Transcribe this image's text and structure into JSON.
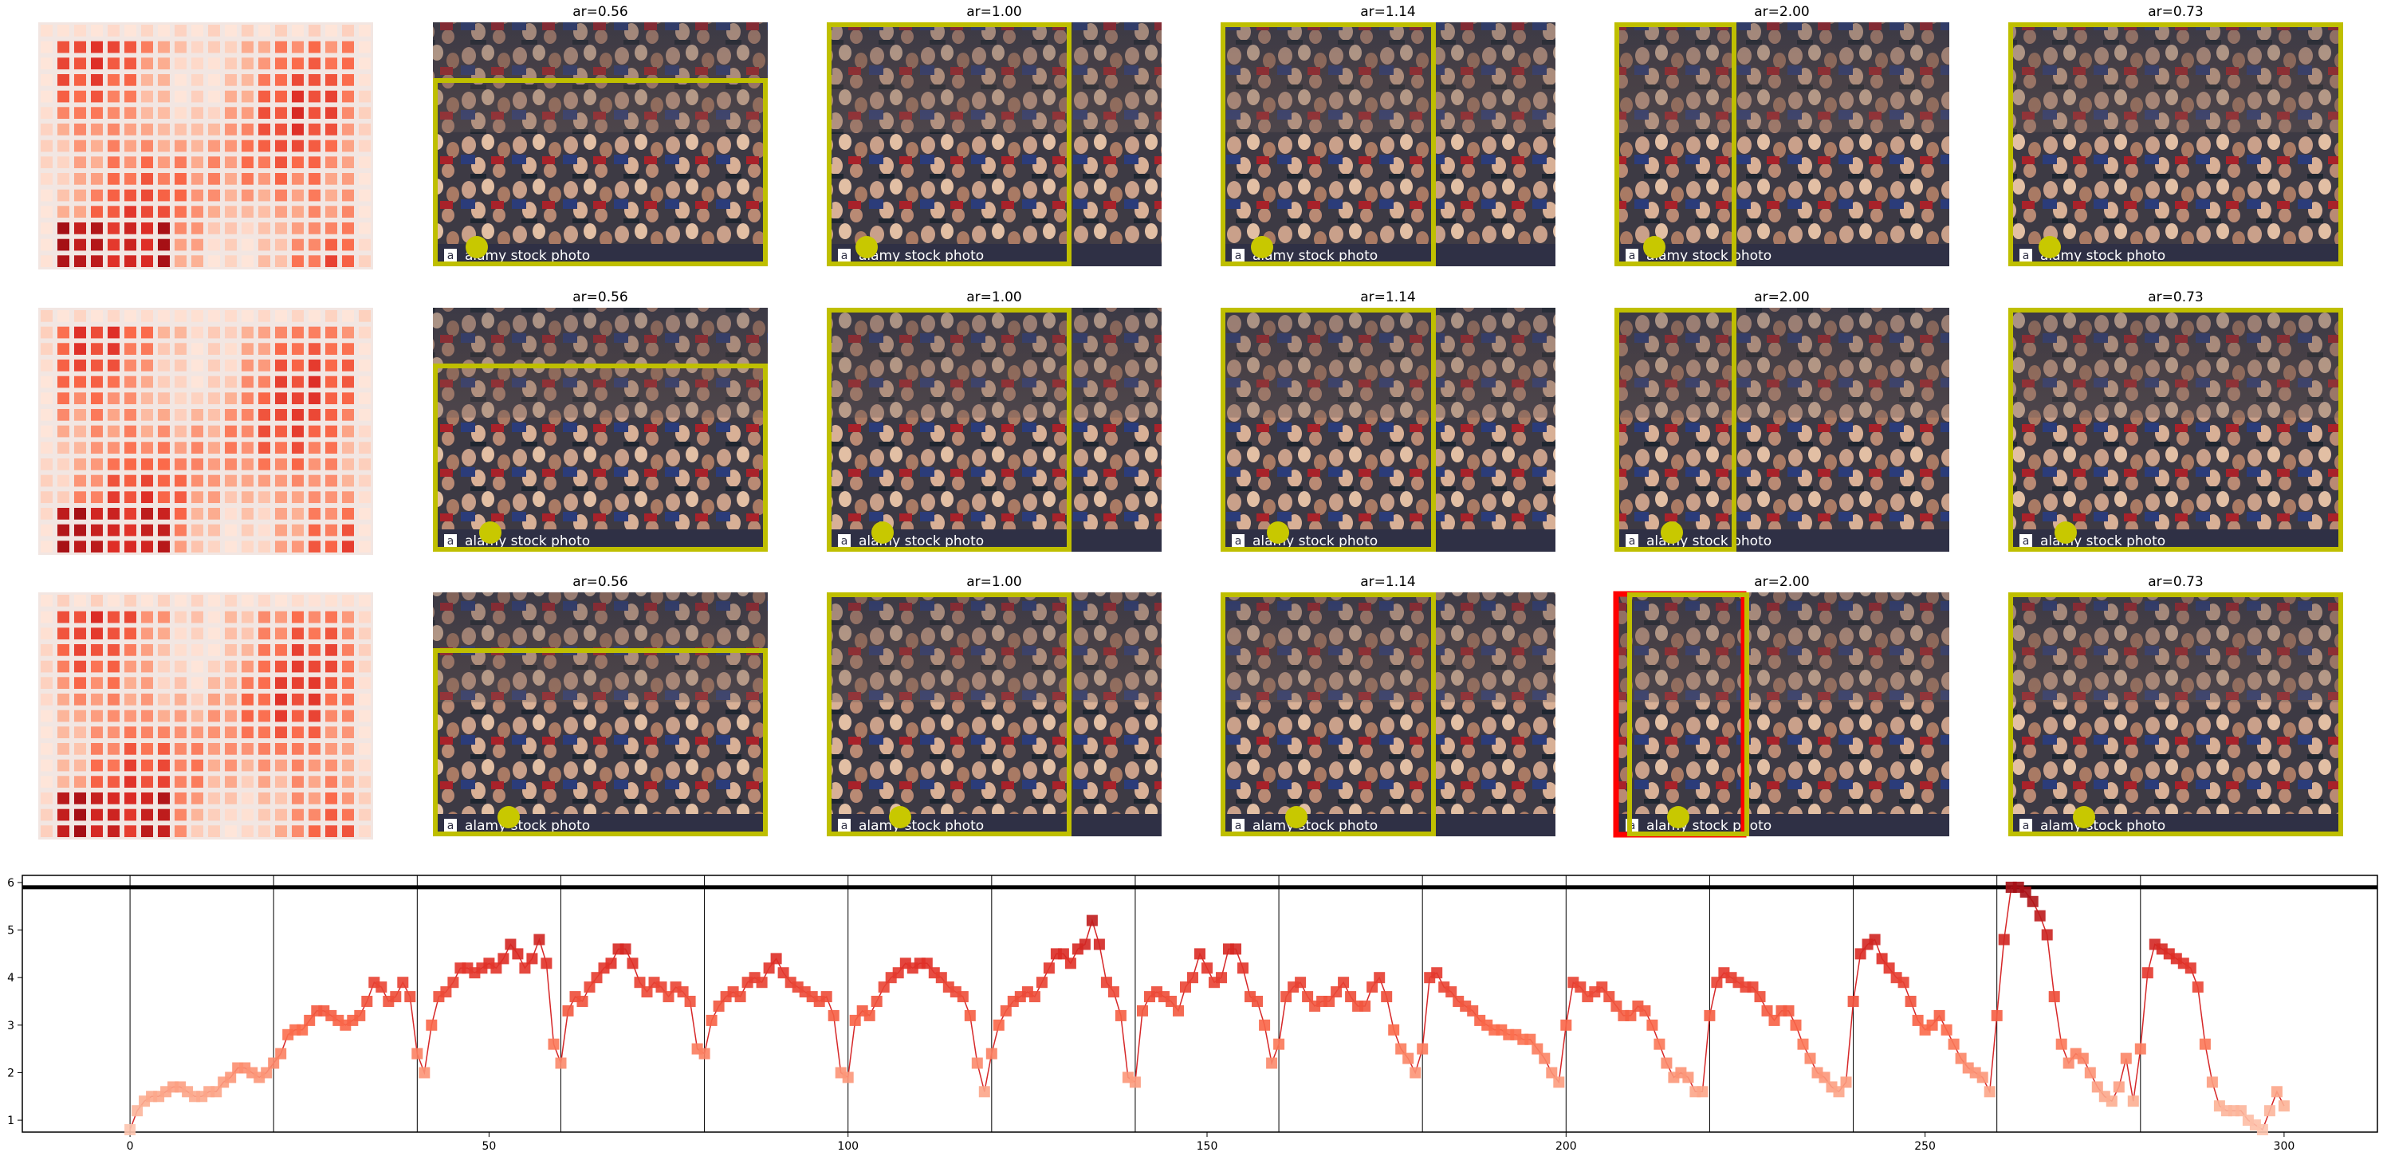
{
  "panel_titles": [
    "ar=0.56",
    "ar=1.00",
    "ar=1.14",
    "ar=2.00",
    "ar=0.73"
  ],
  "watermark_text": "alamy stock photo",
  "watermark_letter": "a",
  "colors": {
    "crop_box": "#bfbf00",
    "marker_dot": "#c8c800",
    "alt_box": "#ff0000",
    "line": "#d62728",
    "threshold_line": "#000000"
  },
  "chart_data": {
    "type": "line",
    "title": "",
    "xlabel": "",
    "ylabel": "",
    "xlim": [
      -15,
      313
    ],
    "ylim": [
      0.75,
      6.15
    ],
    "xticks": [
      0,
      50,
      100,
      150,
      200,
      250,
      300
    ],
    "yticks": [
      1,
      2,
      3,
      4,
      5,
      6
    ],
    "grid": false,
    "segment_boundaries": [
      0,
      20,
      40,
      60,
      80,
      100,
      120,
      140,
      160,
      180,
      200,
      220,
      240,
      260,
      280
    ],
    "threshold_y": 5.9,
    "marker": "square",
    "series": [
      {
        "values": [
          0.8,
          1.2,
          1.4,
          1.5,
          1.5,
          1.6,
          1.7,
          1.7,
          1.6,
          1.5,
          1.5,
          1.6,
          1.6,
          1.8,
          1.9,
          2.1,
          2.1,
          2.0,
          1.9,
          2.0,
          2.2,
          2.4,
          2.8,
          2.9,
          2.9,
          3.1,
          3.3,
          3.3,
          3.2,
          3.1,
          3.0,
          3.1,
          3.2,
          3.5,
          3.9,
          3.8,
          3.5,
          3.6,
          3.9,
          3.6,
          2.4,
          2.0,
          3.0,
          3.6,
          3.7,
          3.9,
          4.2,
          4.2,
          4.1,
          4.2,
          4.3,
          4.2,
          4.4,
          4.7,
          4.5,
          4.2,
          4.4,
          4.8,
          4.3,
          2.6,
          2.2,
          3.3,
          3.6,
          3.5,
          3.8,
          4.0,
          4.2,
          4.3,
          4.6,
          4.6,
          4.3,
          3.9,
          3.7,
          3.9,
          3.8,
          3.6,
          3.8,
          3.7,
          3.5,
          2.5,
          2.4,
          3.1,
          3.4,
          3.6,
          3.7,
          3.6,
          3.9,
          4.0,
          3.9,
          4.2,
          4.4,
          4.1,
          3.9,
          3.8,
          3.7,
          3.6,
          3.5,
          3.6,
          3.2,
          2.0,
          1.9,
          3.1,
          3.3,
          3.2,
          3.5,
          3.8,
          4.0,
          4.1,
          4.3,
          4.2,
          4.3,
          4.3,
          4.1,
          4.0,
          3.8,
          3.7,
          3.6,
          3.2,
          2.2,
          1.6,
          2.4,
          3.0,
          3.3,
          3.5,
          3.6,
          3.7,
          3.6,
          3.9,
          4.2,
          4.5,
          4.5,
          4.3,
          4.6,
          4.7,
          5.2,
          4.7,
          3.9,
          3.7,
          3.2,
          1.9,
          1.8,
          3.3,
          3.6,
          3.7,
          3.6,
          3.5,
          3.3,
          3.8,
          4.0,
          4.5,
          4.2,
          3.9,
          4.0,
          4.6,
          4.6,
          4.2,
          3.6,
          3.5,
          3.0,
          2.2,
          2.6,
          3.6,
          3.8,
          3.9,
          3.6,
          3.4,
          3.5,
          3.5,
          3.7,
          3.9,
          3.6,
          3.4,
          3.4,
          3.8,
          4.0,
          3.6,
          2.9,
          2.5,
          2.3,
          2.0,
          2.5,
          4.0,
          4.1,
          3.8,
          3.7,
          3.5,
          3.4,
          3.3,
          3.1,
          3.0,
          2.9,
          2.9,
          2.8,
          2.8,
          2.7,
          2.7,
          2.5,
          2.3,
          2.0,
          1.8,
          3.0,
          3.9,
          3.8,
          3.6,
          3.7,
          3.8,
          3.6,
          3.4,
          3.2,
          3.2,
          3.4,
          3.3,
          3.0,
          2.6,
          2.2,
          1.9,
          2.0,
          1.9,
          1.6,
          1.6,
          3.2,
          3.9,
          4.1,
          4.0,
          3.9,
          3.8,
          3.8,
          3.6,
          3.3,
          3.1,
          3.3,
          3.3,
          3.0,
          2.6,
          2.3,
          2.0,
          1.9,
          1.7,
          1.6,
          1.8,
          3.5,
          4.5,
          4.7,
          4.8,
          4.4,
          4.2,
          4.0,
          3.9,
          3.5,
          3.1,
          2.9,
          3.0,
          3.2,
          2.9,
          2.6,
          2.3,
          2.1,
          2.0,
          1.9,
          1.6,
          3.2,
          4.8,
          5.9,
          5.9,
          5.8,
          5.6,
          5.3,
          4.9,
          3.6,
          2.6,
          2.2,
          2.4,
          2.3,
          2.0,
          1.7,
          1.5,
          1.4,
          1.7,
          2.3,
          1.4,
          2.5,
          4.1,
          4.7,
          4.6,
          4.5,
          4.4,
          4.3,
          4.2,
          3.8,
          2.6,
          1.8,
          1.3,
          1.2,
          1.2,
          1.2,
          1.0,
          0.9,
          0.8,
          1.2,
          1.6,
          1.3
        ]
      }
    ]
  }
}
